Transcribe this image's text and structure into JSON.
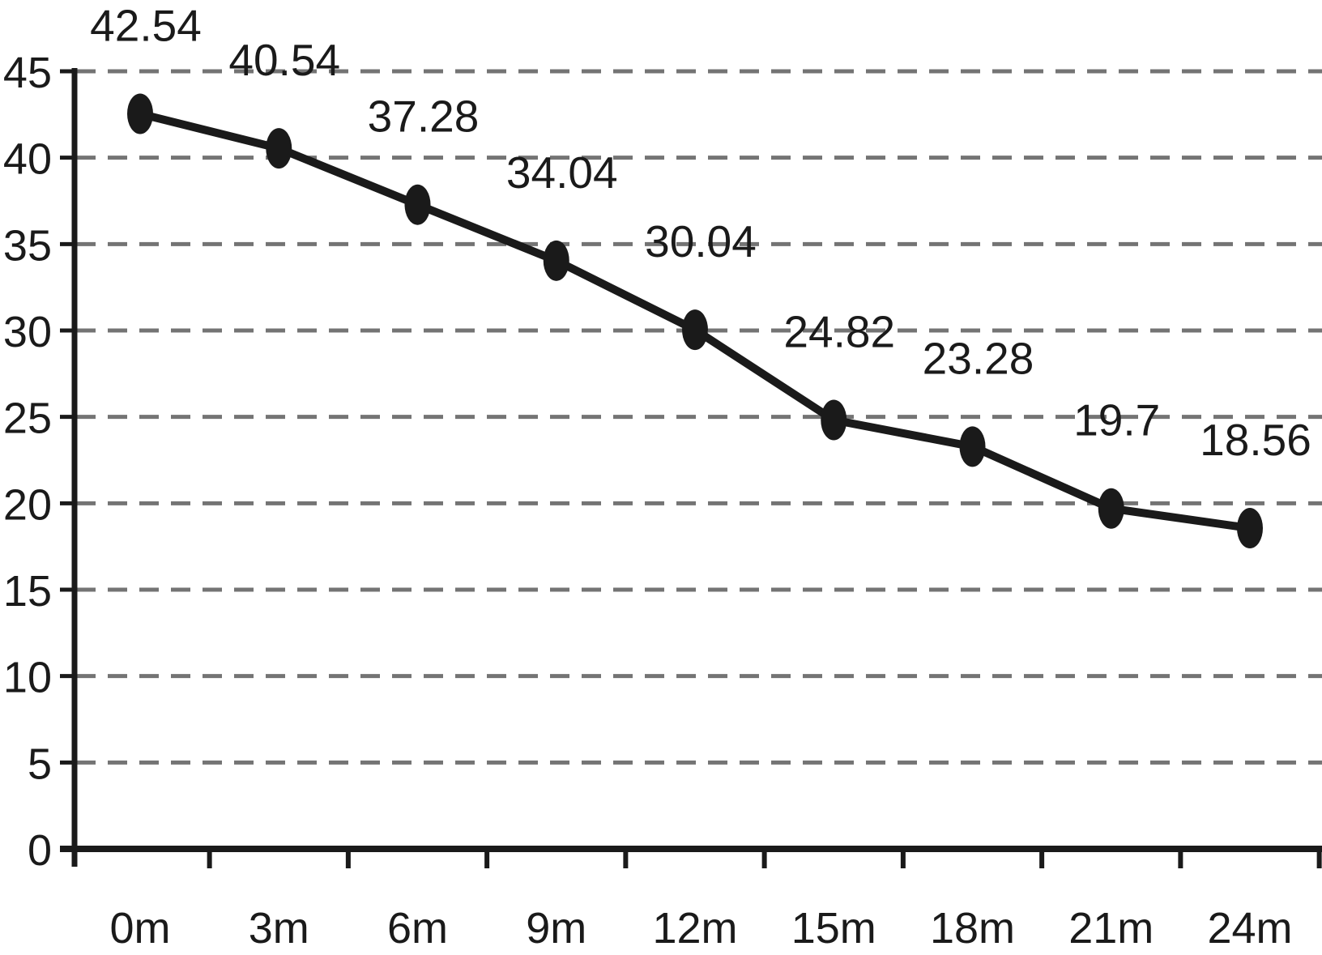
{
  "chart_data": {
    "type": "line",
    "categories": [
      "0m",
      "3m",
      "6m",
      "9m",
      "12m",
      "15m",
      "18m",
      "21m",
      "24m"
    ],
    "values": [
      42.54,
      40.54,
      37.28,
      34.04,
      30.04,
      24.82,
      23.28,
      19.7,
      18.56
    ],
    "data_labels": [
      "42.54",
      "40.54",
      "37.28",
      "34.04",
      "30.04",
      "24.82",
      "23.28",
      "19.7",
      "18.56"
    ],
    "y_ticks": [
      0,
      5,
      10,
      15,
      20,
      25,
      30,
      35,
      40,
      45
    ],
    "y_tick_labels": [
      "0",
      "5",
      "10",
      "15",
      "20",
      "25",
      "30",
      "35",
      "40",
      "45"
    ],
    "ylim": [
      0,
      45
    ],
    "grid": {
      "horizontal": true,
      "style": "dashed"
    },
    "legend": "none",
    "marker_shape": "filled-vertical-ellipse",
    "colors": {
      "line": "#1a1a1a",
      "marker": "#1a1a1a",
      "axis": "#1a1a1a",
      "grid": "#747474",
      "label_text": "#1a1a1a",
      "background": "#ffffff"
    }
  }
}
